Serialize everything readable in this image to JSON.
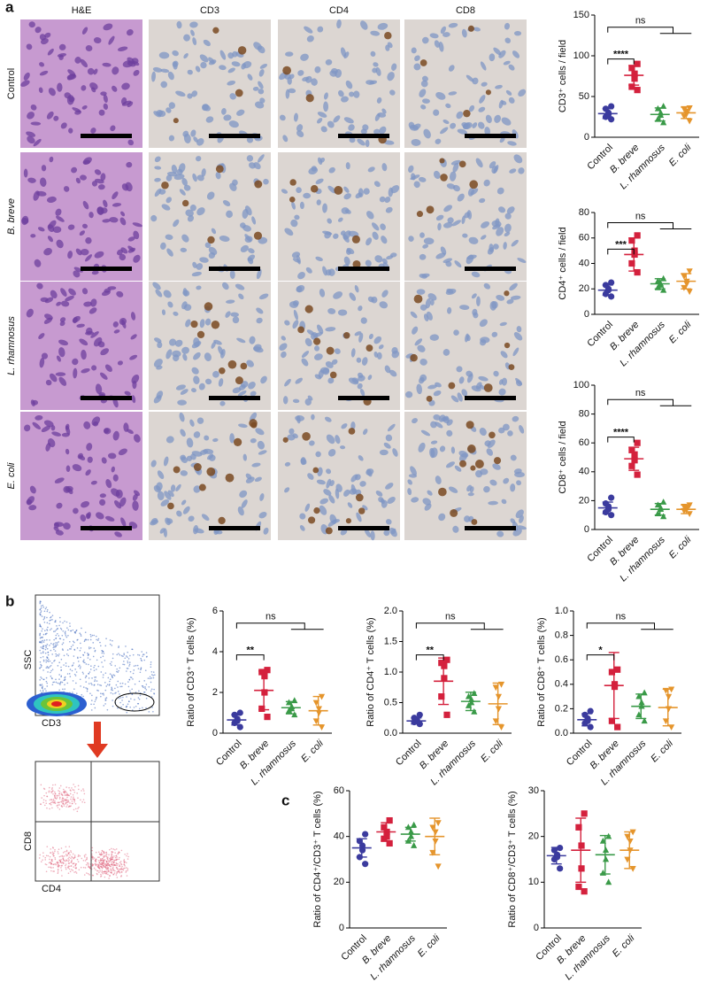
{
  "panel_labels": [
    "a",
    "b",
    "c"
  ],
  "images": {
    "columns": [
      "H&E",
      "CD3",
      "CD4",
      "CD8"
    ],
    "rows": [
      "Control",
      "B. breve",
      "L. rhamnosus",
      "E. coli"
    ]
  },
  "flow": {
    "top": {
      "y_label": "SSC",
      "x_label": "CD3"
    },
    "bottom": {
      "y_label": "CD8",
      "x_label": "CD4"
    }
  },
  "chart_data": [
    {
      "type": "dot",
      "ylabel": "CD3⁺ cells / field",
      "categories": [
        "Control",
        "B. breve",
        "L. rhamnosus",
        "E. coli"
      ],
      "colors": [
        "#3b3b9e",
        "#d4213d",
        "#3a9a48",
        "#e5952c"
      ],
      "markers": [
        "circle",
        "square",
        "triangle",
        "triangle-down"
      ],
      "points": [
        [
          22,
          25,
          28,
          30,
          35,
          38
        ],
        [
          58,
          62,
          72,
          78,
          85,
          90
        ],
        [
          18,
          22,
          27,
          30,
          35,
          38
        ],
        [
          20,
          26,
          29,
          32,
          35,
          36
        ]
      ],
      "mean": [
        29,
        76,
        28,
        30
      ],
      "sd": [
        6,
        12,
        8,
        7
      ],
      "ylim": [
        0,
        150
      ],
      "yticks": [
        0,
        50,
        100,
        150
      ],
      "annotations": [
        "****",
        "ns"
      ]
    },
    {
      "type": "dot",
      "ylabel": "CD4⁺ cells / field",
      "categories": [
        "Control",
        "B. breve",
        "L. rhamnosus",
        "E. coli"
      ],
      "colors": [
        "#3b3b9e",
        "#d4213d",
        "#3a9a48",
        "#e5952c"
      ],
      "markers": [
        "circle",
        "square",
        "triangle",
        "triangle-down"
      ],
      "points": [
        [
          14,
          16,
          19,
          20,
          23,
          25
        ],
        [
          33,
          40,
          47,
          50,
          58,
          62
        ],
        [
          19,
          21,
          23,
          24,
          26,
          28
        ],
        [
          18,
          21,
          24,
          26,
          30,
          34
        ]
      ],
      "mean": [
        19,
        47,
        24,
        26
      ],
      "sd": [
        4,
        13,
        4,
        6
      ],
      "ylim": [
        0,
        80
      ],
      "yticks": [
        0,
        20,
        40,
        60,
        80
      ],
      "annotations": [
        "***",
        "ns"
      ]
    },
    {
      "type": "dot",
      "ylabel": "CD8⁺ cells / field",
      "categories": [
        "Control",
        "B. breve",
        "L. rhamnosus",
        "E. coli"
      ],
      "colors": [
        "#3b3b9e",
        "#d4213d",
        "#3a9a48",
        "#e5952c"
      ],
      "markers": [
        "circle",
        "square",
        "triangle",
        "triangle-down"
      ],
      "points": [
        [
          10,
          12,
          14,
          16,
          18,
          22
        ],
        [
          38,
          44,
          48,
          52,
          55,
          60
        ],
        [
          9,
          11,
          14,
          15,
          17,
          19
        ],
        [
          11,
          13,
          14,
          15,
          16,
          17
        ]
      ],
      "mean": [
        15,
        49,
        14,
        14
      ],
      "sd": [
        4,
        8,
        4,
        3
      ],
      "ylim": [
        0,
        100
      ],
      "yticks": [
        0,
        20,
        40,
        60,
        80,
        100
      ],
      "annotations": [
        "****",
        "ns"
      ]
    },
    {
      "type": "dot",
      "ylabel": "Ratio of CD3⁺ T cells (%)",
      "categories": [
        "Control",
        "B. breve",
        "L. rhamnosus",
        "E. coli"
      ],
      "colors": [
        "#3b3b9e",
        "#d4213d",
        "#3a9a48",
        "#e5952c"
      ],
      "markers": [
        "circle",
        "square",
        "triangle",
        "triangle-down"
      ],
      "points": [
        [
          0.3,
          0.5,
          0.6,
          0.7,
          0.9,
          1.0
        ],
        [
          0.8,
          1.2,
          2.0,
          2.8,
          3.0,
          3.1
        ],
        [
          0.9,
          1.1,
          1.2,
          1.3,
          1.5,
          1.6
        ],
        [
          0.3,
          0.6,
          1.0,
          1.2,
          1.5,
          1.8
        ]
      ],
      "mean": [
        0.65,
        2.1,
        1.25,
        1.1
      ],
      "sd": [
        0.25,
        0.95,
        0.3,
        0.7
      ],
      "ylim": [
        0,
        6
      ],
      "yticks": [
        0,
        2,
        4,
        6
      ],
      "annotations": [
        "**",
        "ns"
      ]
    },
    {
      "type": "dot",
      "ylabel": "Ratio of CD4⁺ T cells (%)",
      "categories": [
        "Control",
        "B. breve",
        "L. rhamnosus",
        "E. coli"
      ],
      "colors": [
        "#3b3b9e",
        "#d4213d",
        "#3a9a48",
        "#e5952c"
      ],
      "markers": [
        "circle",
        "square",
        "triangle",
        "triangle-down"
      ],
      "points": [
        [
          0.15,
          0.18,
          0.2,
          0.22,
          0.25,
          0.3
        ],
        [
          0.3,
          0.6,
          0.9,
          1.1,
          1.15,
          1.2
        ],
        [
          0.35,
          0.45,
          0.5,
          0.55,
          0.6,
          0.65
        ],
        [
          0.1,
          0.2,
          0.4,
          0.6,
          0.75,
          0.8
        ]
      ],
      "mean": [
        0.2,
        0.85,
        0.52,
        0.48
      ],
      "sd": [
        0.05,
        0.38,
        0.15,
        0.34
      ],
      "ylim": [
        0,
        2
      ],
      "yticks": [
        {
          "value": 0,
          "label": "0.0"
        },
        0.5,
        {
          "value": 1,
          "label": "1.0"
        },
        1.5,
        {
          "value": 2,
          "label": "2.0"
        }
      ],
      "annotations": [
        "**",
        "ns"
      ]
    },
    {
      "type": "dot",
      "ylabel": "Ratio of CD8⁺ T cells (%)",
      "categories": [
        "Control",
        "B. breve",
        "L. rhamnosus",
        "E. coli"
      ],
      "colors": [
        "#3b3b9e",
        "#d4213d",
        "#3a9a48",
        "#e5952c"
      ],
      "markers": [
        "circle",
        "square",
        "triangle",
        "triangle-down"
      ],
      "points": [
        [
          0.05,
          0.08,
          0.1,
          0.12,
          0.15,
          0.18
        ],
        [
          0.05,
          0.1,
          0.38,
          0.4,
          0.5,
          0.52
        ],
        [
          0.1,
          0.15,
          0.22,
          0.25,
          0.3,
          0.33
        ],
        [
          0.05,
          0.1,
          0.2,
          0.3,
          0.35,
          0.36
        ]
      ],
      "mean": [
        0.11,
        0.39,
        0.22,
        0.21
      ],
      "sd": [
        0.05,
        0.27,
        0.1,
        0.15
      ],
      "ylim": [
        0,
        1
      ],
      "yticks": [
        {
          "value": 0,
          "label": "0.0"
        },
        0.2,
        0.4,
        0.6,
        0.8,
        {
          "value": 1,
          "label": "1.0"
        }
      ],
      "annotations": [
        "*",
        "ns"
      ]
    },
    {
      "type": "dot",
      "ylabel": "Ratio of CD4⁺/CD3⁺ T cells (%)",
      "categories": [
        "Control",
        "B. breve",
        "L. rhamnosus",
        "E. coli"
      ],
      "colors": [
        "#3b3b9e",
        "#d4213d",
        "#3a9a48",
        "#e5952c"
      ],
      "markers": [
        "circle",
        "square",
        "triangle",
        "triangle-down"
      ],
      "points": [
        [
          28,
          31,
          34,
          36,
          38,
          41
        ],
        [
          37,
          39,
          40,
          42,
          44,
          47
        ],
        [
          36,
          38,
          40,
          42,
          44,
          45
        ],
        [
          27,
          33,
          38,
          42,
          44,
          46
        ]
      ],
      "mean": [
        35,
        42,
        41,
        40
      ],
      "sd": [
        4,
        4,
        3,
        8
      ],
      "ylim": [
        0,
        60
      ],
      "yticks": [
        0,
        20,
        40,
        60
      ]
    },
    {
      "type": "dot",
      "ylabel": "Ratio of CD8⁺/CD3⁺ T cells (%)",
      "categories": [
        "Control",
        "B. breve",
        "L. rhamnosus",
        "E. coli"
      ],
      "colors": [
        "#3b3b9e",
        "#d4213d",
        "#3a9a48",
        "#e5952c"
      ],
      "markers": [
        "circle",
        "square",
        "triangle",
        "triangle-down"
      ],
      "points": [
        [
          13,
          15,
          15.5,
          16,
          17,
          17.5
        ],
        [
          8,
          9,
          13,
          18,
          22,
          25
        ],
        [
          10,
          12,
          15,
          17,
          19,
          20
        ],
        [
          13,
          15,
          17,
          19,
          20,
          21
        ]
      ],
      "mean": [
        15.8,
        17,
        16,
        17
      ],
      "sd": [
        1.8,
        7,
        4.2,
        4
      ],
      "ylim": [
        0,
        30
      ],
      "yticks": [
        0,
        10,
        20,
        30
      ]
    }
  ]
}
